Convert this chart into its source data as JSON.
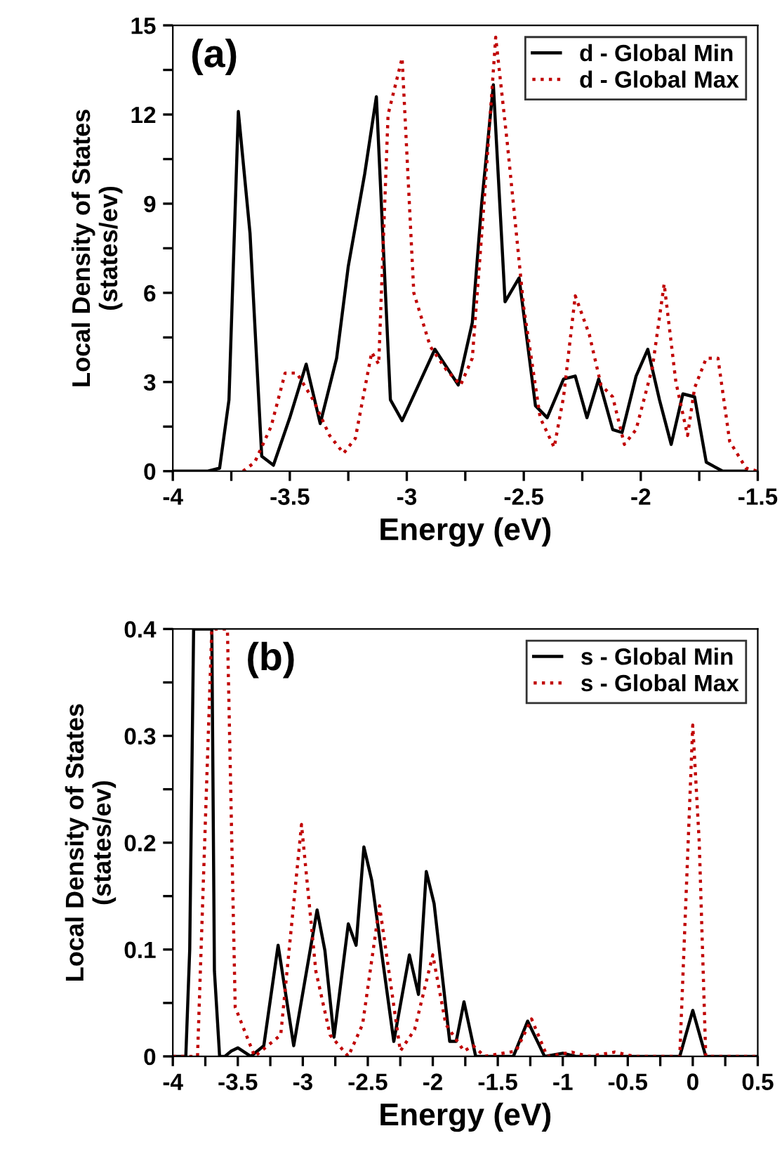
{
  "chart_data": [
    {
      "type": "line",
      "title": "(a)",
      "xlabel": "Energy (eV)",
      "ylabel": "Local Density of States\n(states/ev)",
      "xlim": [
        -4,
        -1.5
      ],
      "ylim": [
        0,
        15
      ],
      "xticks": [
        -4,
        {
          "value": -3.75,
          "label": null
        },
        -3.5,
        {
          "value": -3.25,
          "label": null
        },
        -3,
        {
          "value": -2.75,
          "label": null
        },
        -2.5,
        {
          "value": -2.25,
          "label": null
        },
        -2,
        {
          "value": -1.75,
          "label": null
        },
        -1.5
      ],
      "yticks": [
        0,
        {
          "value": 1.5,
          "label": null
        },
        3,
        {
          "value": 4.5,
          "label": null
        },
        6,
        {
          "value": 7.5,
          "label": null
        },
        9,
        {
          "value": 10.5,
          "label": null
        },
        12,
        {
          "value": 13.5,
          "label": null
        },
        15
      ],
      "legend": "top right",
      "grid": false,
      "series": [
        {
          "name": "d - Global Min",
          "color": "#000000",
          "line_style": "solid",
          "x": [
            -4,
            -3.85,
            -3.8,
            -3.76,
            -3.72,
            -3.67,
            -3.62,
            -3.57,
            -3.5,
            -3.43,
            -3.37,
            -3.3,
            -3.25,
            -3.18,
            -3.13,
            -3.07,
            -3.02,
            -2.95,
            -2.88,
            -2.78,
            -2.72,
            -2.68,
            -2.63,
            -2.58,
            -2.52,
            -2.45,
            -2.4,
            -2.33,
            -2.28,
            -2.23,
            -2.18,
            -2.12,
            -2.08,
            -2.02,
            -1.97,
            -1.92,
            -1.87,
            -1.82,
            -1.77,
            -1.72,
            -1.65,
            -1.55
          ],
          "values": [
            0,
            0,
            0.1,
            2.4,
            12.1,
            8,
            0.5,
            0.2,
            1.8,
            3.6,
            1.6,
            3.8,
            6.9,
            10,
            12.6,
            2.4,
            1.7,
            2.9,
            4.1,
            2.9,
            5,
            9,
            13,
            5.7,
            6.5,
            2.2,
            1.8,
            3.1,
            3.2,
            1.8,
            3.1,
            1.4,
            1.3,
            3.2,
            4.1,
            2.4,
            0.9,
            2.6,
            2.5,
            0.3,
            0,
            0
          ]
        },
        {
          "name": "d - Global Max",
          "color": "#c00000",
          "line_style": "dotted",
          "x": [
            -3.7,
            -3.65,
            -3.58,
            -3.52,
            -3.47,
            -3.4,
            -3.33,
            -3.27,
            -3.22,
            -3.15,
            -3.12,
            -3.08,
            -3.02,
            -2.97,
            -2.9,
            -2.83,
            -2.77,
            -2.72,
            -2.67,
            -2.62,
            -2.57,
            -2.5,
            -2.43,
            -2.37,
            -2.33,
            -2.28,
            -2.22,
            -2.17,
            -2.12,
            -2.07,
            -2.02,
            -1.95,
            -1.9,
            -1.85,
            -1.8,
            -1.77,
            -1.72,
            -1.67,
            -1.62,
            -1.55,
            -1.5
          ],
          "values": [
            0,
            0.3,
            1.5,
            3.3,
            3.3,
            2.4,
            1.2,
            0.6,
            1.1,
            4,
            3.6,
            12,
            13.9,
            6,
            4.2,
            3.4,
            2.9,
            3.8,
            9,
            14.6,
            11,
            5.5,
            1.8,
            0.8,
            2.5,
            5.9,
            4.6,
            2.9,
            2.5,
            0.9,
            1.4,
            3.5,
            6.3,
            3,
            1.2,
            2.8,
            3.8,
            3.8,
            1,
            0.1,
            0
          ]
        }
      ]
    },
    {
      "type": "line",
      "title": "(b)",
      "xlabel": "Energy (eV)",
      "ylabel": "Local Density of States\n(states/ev)",
      "xlim": [
        -4,
        0.5
      ],
      "ylim": [
        0,
        0.4
      ],
      "xticks": [
        -4,
        {
          "value": -3.75,
          "label": null
        },
        -3.5,
        {
          "value": -3.25,
          "label": null
        },
        -3,
        {
          "value": -2.75,
          "label": null
        },
        -2.5,
        {
          "value": -2.25,
          "label": null
        },
        -2,
        {
          "value": -1.75,
          "label": null
        },
        -1.5,
        {
          "value": -1.25,
          "label": null
        },
        -1,
        {
          "value": -0.75,
          "label": null
        },
        -0.5,
        {
          "value": -0.25,
          "label": null
        },
        0,
        {
          "value": 0.25,
          "label": null
        },
        0.5
      ],
      "yticks": [
        0,
        {
          "value": 0.05,
          "label": null
        },
        0.1,
        {
          "value": 0.15,
          "label": null
        },
        0.2,
        {
          "value": 0.25,
          "label": null
        },
        0.3,
        {
          "value": 0.35,
          "label": null
        },
        0.4
      ],
      "legend": "top right",
      "grid": false,
      "series": [
        {
          "name": "s - Global Min",
          "color": "#000000",
          "line_style": "solid",
          "x": [
            -4,
            -3.9,
            -3.87,
            -3.84,
            -3.7,
            -3.68,
            -3.64,
            -3.6,
            -3.55,
            -3.5,
            -3.4,
            -3.3,
            -3.19,
            -3.07,
            -2.89,
            -2.83,
            -2.76,
            -2.65,
            -2.59,
            -2.53,
            -2.47,
            -2.3,
            -2.18,
            -2.11,
            -2.05,
            -1.99,
            -1.87,
            -1.82,
            -1.76,
            -1.67,
            -1.38,
            -1.27,
            -1.14,
            -1.0,
            -0.9,
            -0.1,
            0.0,
            0.1,
            0.5
          ],
          "values": [
            0,
            0,
            0.1,
            0.4,
            0.4,
            0.08,
            0,
            0,
            0.005,
            0.008,
            0,
            0.01,
            0.104,
            0.01,
            0.137,
            0.099,
            0.018,
            0.124,
            0.104,
            0.196,
            0.165,
            0.014,
            0.095,
            0.058,
            0.173,
            0.143,
            0.014,
            0.014,
            0.051,
            0,
            0,
            0.033,
            0,
            0.003,
            0,
            0,
            0.043,
            0,
            0
          ]
        },
        {
          "name": "s - Global Max",
          "color": "#c00000",
          "line_style": "dotted",
          "x": [
            -4,
            -3.81,
            -3.7,
            -3.58,
            -3.52,
            -3.37,
            -3.17,
            -3.01,
            -2.9,
            -2.79,
            -2.65,
            -2.54,
            -2.41,
            -2.25,
            -2.14,
            -2.0,
            -1.9,
            -1.76,
            -1.69,
            -1.6,
            -1.36,
            -1.24,
            -1.12,
            -0.93,
            -0.8,
            -0.6,
            -0.45,
            -0.1,
            0.0,
            0.05,
            0.1,
            0.5
          ],
          "values": [
            0,
            0,
            0.4,
            0.4,
            0.046,
            0,
            0.02,
            0.217,
            0.08,
            0.02,
            0,
            0.03,
            0.141,
            0.005,
            0.025,
            0.095,
            0.03,
            0.005,
            0.01,
            0,
            0.005,
            0.035,
            0,
            0.004,
            0,
            0.004,
            0,
            0,
            0.31,
            0.2,
            0,
            0
          ]
        }
      ]
    }
  ]
}
